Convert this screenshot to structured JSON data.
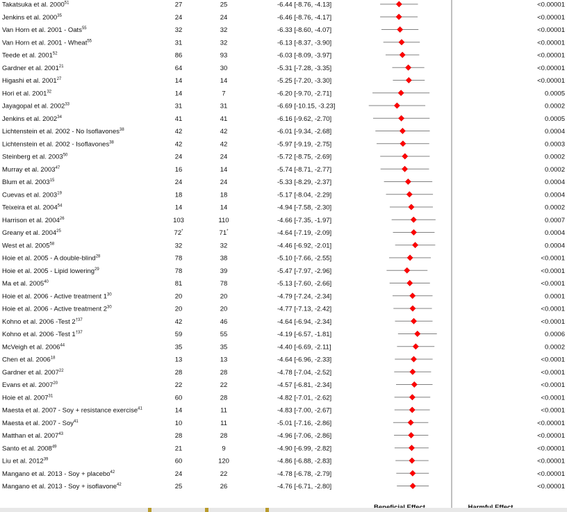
{
  "chart_data": {
    "type": "forest",
    "xlim": [
      -10,
      10
    ],
    "xticks": [
      -10,
      -8,
      -6,
      -4,
      -2,
      0,
      2,
      4,
      6,
      8,
      10
    ],
    "axis_left_title": "Beneficial Effect",
    "axis_right_title": "Harmful Effect",
    "colors": {
      "marker": "#ff0000",
      "ci_line": "#808080",
      "zero_line": "#808080"
    },
    "studies": [
      {
        "name": "Takatsuka et al. 2000",
        "ref": "51",
        "n1": "27",
        "n2": "25",
        "md": -6.44,
        "lo": -8.76,
        "hi": -4.13,
        "ci_text": "-6.44 [-8.76, -4.13]",
        "p": "<0.00001"
      },
      {
        "name": "Jenkins et al. 2000",
        "ref": "35",
        "n1": "24",
        "n2": "24",
        "md": -6.46,
        "lo": -8.76,
        "hi": -4.17,
        "ci_text": "-6.46 [-8.76, -4.17]",
        "p": "<0.00001"
      },
      {
        "name": "Van Horn et al. 2001 - Oats",
        "ref": "55",
        "n1": "32",
        "n2": "32",
        "md": -6.33,
        "lo": -8.6,
        "hi": -4.07,
        "ci_text": "-6.33 [-8.60, -4.07]",
        "p": "<0.00001"
      },
      {
        "name": "Van Horn et al. 2001 - Wheat",
        "ref": "55",
        "n1": "31",
        "n2": "32",
        "md": -6.13,
        "lo": -8.37,
        "hi": -3.9,
        "ci_text": "-6.13 [-8.37, -3.90]",
        "p": "<0.00001"
      },
      {
        "name": "Teede et al. 2001",
        "ref": "52",
        "n1": "86",
        "n2": "93",
        "md": -6.03,
        "lo": -8.09,
        "hi": -3.97,
        "ci_text": "-6.03 [-8.09, -3.97]",
        "p": "<0.00001"
      },
      {
        "name": "Gardner et al. 2001",
        "ref": "21",
        "n1": "64",
        "n2": "30",
        "md": -5.31,
        "lo": -7.28,
        "hi": -3.35,
        "ci_text": "-5.31 [-7.28, -3.35]",
        "p": "<0.00001"
      },
      {
        "name": "Higashi et al. 2001",
        "ref": "27",
        "n1": "14",
        "n2": "14",
        "md": -5.25,
        "lo": -7.2,
        "hi": -3.3,
        "ci_text": "-5.25 [-7.20, -3.30]",
        "p": "<0.00001"
      },
      {
        "name": "Hori et al. 2001",
        "ref": "32",
        "n1": "14",
        "n2": "7",
        "md": -6.2,
        "lo": -9.7,
        "hi": -2.71,
        "ci_text": "-6.20 [-9.70, -2.71]",
        "p": "0.0005"
      },
      {
        "name": "Jayagopal et al. 2002",
        "ref": "33",
        "n1": "31",
        "n2": "31",
        "md": -6.69,
        "lo": -10.15,
        "hi": -3.23,
        "ci_text": "-6.69 [-10.15, -3.23]",
        "p": "0.0002"
      },
      {
        "name": "Jenkins et al. 2002",
        "ref": "34",
        "n1": "41",
        "n2": "41",
        "md": -6.16,
        "lo": -9.62,
        "hi": -2.7,
        "ci_text": "-6.16 [-9.62, -2.70]",
        "p": "0.0005"
      },
      {
        "name": "Lichtenstein et al. 2002 - No Isoflavones",
        "ref": "38",
        "n1": "42",
        "n2": "42",
        "md": -6.01,
        "lo": -9.34,
        "hi": -2.68,
        "ci_text": "-6.01 [-9.34, -2.68]",
        "p": "0.0004"
      },
      {
        "name": "Lichtenstein et al. 2002 - Isoflavones",
        "ref": "38",
        "n1": "42",
        "n2": "42",
        "md": -5.97,
        "lo": -9.19,
        "hi": -2.75,
        "ci_text": "-5.97 [-9.19, -2.75]",
        "p": "0.0003"
      },
      {
        "name": "Steinberg et al. 2003",
        "ref": "50",
        "n1": "24",
        "n2": "24",
        "md": -5.72,
        "lo": -8.75,
        "hi": -2.69,
        "ci_text": "-5.72 [-8.75, -2.69]",
        "p": "0.0002"
      },
      {
        "name": "Murray et al. 2003",
        "ref": "47",
        "n1": "16",
        "n2": "14",
        "md": -5.74,
        "lo": -8.71,
        "hi": -2.77,
        "ci_text": "-5.74 [-8.71, -2.77]",
        "p": "0.0002"
      },
      {
        "name": "Blum et al. 2003",
        "ref": "15",
        "n1": "24",
        "n2": "24",
        "md": -5.33,
        "lo": -8.29,
        "hi": -2.37,
        "ci_text": "-5.33 [-8.29, -2.37]",
        "p": "0.0004"
      },
      {
        "name": "Cuevas et al. 2003",
        "ref": "19",
        "n1": "18",
        "n2": "18",
        "md": -5.17,
        "lo": -8.04,
        "hi": -2.29,
        "ci_text": "-5.17 [-8.04, -2.29]",
        "p": "0.0004"
      },
      {
        "name": "Teixeira et al. 2004",
        "ref": "54",
        "n1": "14",
        "n2": "14",
        "md": -4.94,
        "lo": -7.58,
        "hi": -2.3,
        "ci_text": "-4.94 [-7.58, -2.30]",
        "p": "0.0002"
      },
      {
        "name": "Harrison et al. 2004",
        "ref": "26",
        "n1": "103",
        "n2": "110",
        "md": -4.66,
        "lo": -7.35,
        "hi": -1.97,
        "ci_text": "-4.66 [-7.35, -1.97]",
        "p": "0.0007"
      },
      {
        "name": "Greany et al. 2004",
        "ref": "25",
        "n1": "72",
        "n1_mark": "*",
        "n2": "71",
        "n2_mark": "*",
        "md": -4.64,
        "lo": -7.19,
        "hi": -2.09,
        "ci_text": "-4.64 [-7.19, -2.09]",
        "p": "0.0004"
      },
      {
        "name": "West et al. 2005",
        "ref": "58",
        "n1": "32",
        "n2": "32",
        "md": -4.46,
        "lo": -6.92,
        "hi": -2.01,
        "ci_text": "-4.46 [-6.92, -2.01]",
        "p": "0.0004"
      },
      {
        "name": "Hoie et al. 2005 - A double-blind",
        "ref": "28",
        "n1": "78",
        "n2": "38",
        "md": -5.1,
        "lo": -7.66,
        "hi": -2.55,
        "ci_text": "-5.10 [-7.66, -2.55]",
        "p": "<0.0001"
      },
      {
        "name": "Hoie et al. 2005 - Lipid lowering",
        "ref": "29",
        "n1": "78",
        "n2": "39",
        "md": -5.47,
        "lo": -7.97,
        "hi": -2.96,
        "ci_text": "-5.47 [-7.97, -2.96]",
        "p": "<0.0001"
      },
      {
        "name": "Ma et al. 2005",
        "ref": "40",
        "n1": "81",
        "n2": "78",
        "md": -5.13,
        "lo": -7.6,
        "hi": -2.66,
        "ci_text": "-5.13 [-7.60, -2.66]",
        "p": "<0.0001"
      },
      {
        "name": "Hoie et al. 2006 - Active treatment 1",
        "ref": "30",
        "n1": "20",
        "n2": "20",
        "md": -4.79,
        "lo": -7.24,
        "hi": -2.34,
        "ci_text": "-4.79 [-7.24, -2.34]",
        "p": "0.0001"
      },
      {
        "name": "Hoie et al. 2006 - Active treatment 2",
        "ref": "30",
        "n1": "20",
        "n2": "20",
        "md": -4.77,
        "lo": -7.13,
        "hi": -2.42,
        "ci_text": "-4.77 [-7.13, -2.42]",
        "p": "<0.0001"
      },
      {
        "name": "Kohno et al. 2006 -Test 2",
        "ref": "†37",
        "n1": "42",
        "n2": "46",
        "md": -4.64,
        "lo": -6.94,
        "hi": -2.34,
        "ci_text": "-4.64 [-6.94, -2.34]",
        "p": "<0.0001"
      },
      {
        "name": "Kohno et al. 2006 -Test 1",
        "ref": "†37",
        "n1": "59",
        "n2": "55",
        "md": -4.19,
        "lo": -6.57,
        "hi": -1.81,
        "ci_text": "-4.19 [-6.57, -1.81]",
        "p": "0.0006"
      },
      {
        "name": "McVeigh et al. 2006",
        "ref": "44",
        "n1": "35",
        "n2": "35",
        "md": -4.4,
        "lo": -6.69,
        "hi": -2.11,
        "ci_text": "-4.40 [-6.69, -2.11]",
        "p": "0.0002"
      },
      {
        "name": "Chen et al. 2006",
        "ref": "18",
        "n1": "13",
        "n2": "13",
        "md": -4.64,
        "lo": -6.96,
        "hi": -2.33,
        "ci_text": "-4.64 [-6.96, -2.33]",
        "p": "<0.0001"
      },
      {
        "name": "Gardner et al. 2007",
        "ref": "22",
        "n1": "28",
        "n2": "28",
        "md": -4.78,
        "lo": -7.04,
        "hi": -2.52,
        "ci_text": "-4.78 [-7.04, -2.52]",
        "p": "<0.0001"
      },
      {
        "name": "Evans et al. 2007",
        "ref": "20",
        "n1": "22",
        "n2": "22",
        "md": -4.57,
        "lo": -6.81,
        "hi": -2.34,
        "ci_text": "-4.57 [-6.81, -2.34]",
        "p": "<0.0001"
      },
      {
        "name": "Hoie et al. 2007",
        "ref": "31",
        "n1": "60",
        "n2": "28",
        "md": -4.82,
        "lo": -7.01,
        "hi": -2.62,
        "ci_text": "-4.82 [-7.01, -2.62]",
        "p": "<0.0001"
      },
      {
        "name": "Maesta et al. 2007 - Soy + resistance exercise",
        "ref": "41",
        "n1": "14",
        "n2": "11",
        "md": -4.83,
        "lo": -7.0,
        "hi": -2.67,
        "ci_text": "-4.83 [-7.00, -2.67]",
        "p": "<0.0001"
      },
      {
        "name": "Maesta et al. 2007 - Soy",
        "ref": "41",
        "n1": "10",
        "n2": "11",
        "md": -5.01,
        "lo": -7.16,
        "hi": -2.86,
        "ci_text": "-5.01 [-7.16, -2.86]",
        "p": "<0.00001"
      },
      {
        "name": "Matthan et al. 2007",
        "ref": "43",
        "n1": "28",
        "n2": "28",
        "md": -4.96,
        "lo": -7.06,
        "hi": -2.86,
        "ci_text": "-4.96 [-7.06, -2.86]",
        "p": "<0.00001"
      },
      {
        "name": "Santo et al. 2008",
        "ref": "49",
        "n1": "21",
        "n2": "9",
        "md": -4.9,
        "lo": -6.99,
        "hi": -2.82,
        "ci_text": "-4.90 [-6.99, -2.82]",
        "p": "<0.00001"
      },
      {
        "name": "Liu et al. 2012",
        "ref": "39",
        "n1": "60",
        "n2": "120",
        "md": -4.86,
        "lo": -6.88,
        "hi": -2.83,
        "ci_text": "-4.86 [-6.88, -2.83]",
        "p": "<0.00001"
      },
      {
        "name": "Mangano et al. 2013 - Soy + placebo",
        "ref": "42",
        "n1": "24",
        "n2": "22",
        "md": -4.78,
        "lo": -6.78,
        "hi": -2.79,
        "ci_text": "-4.78 [-6.78, -2.79]",
        "p": "<0.00001"
      },
      {
        "name": "Mangano et al. 2013 - Soy + isoflavone",
        "ref": "42",
        "n1": "25",
        "n2": "26",
        "md": -4.76,
        "lo": -6.71,
        "hi": -2.8,
        "ci_text": "-4.76 [-6.71, -2.80]",
        "p": "<0.00001"
      }
    ]
  }
}
